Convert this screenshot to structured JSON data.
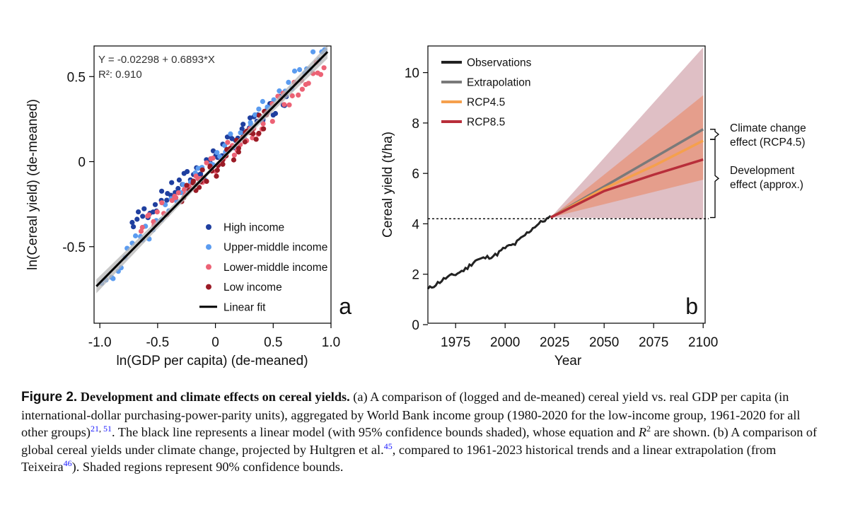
{
  "chart_data": [
    {
      "type": "scatter",
      "panel_label": "a",
      "xlabel": "ln(GDP per capita) (de-meaned)",
      "ylabel": "ln(Cereal yield) (de-meaned)",
      "xlim": [
        -1.05,
        1.0
      ],
      "ylim": [
        -0.95,
        0.68
      ],
      "xticks": [
        -1.0,
        -0.5,
        0,
        0.5,
        1.0
      ],
      "xtick_labels": [
        "-1.0",
        "-0.5",
        "0",
        "0.5",
        "1.0"
      ],
      "yticks": [
        -0.5,
        0,
        0.5
      ],
      "ytick_labels": [
        "-0.5",
        "0",
        "0.5"
      ],
      "equation": "Y = -0.02298 + 0.6893*X",
      "r2": "R²: 0.910",
      "fit": {
        "intercept": -0.02298,
        "slope": 0.6893,
        "name": "Linear fit",
        "color": "#000000"
      },
      "series": [
        {
          "name": "High income",
          "color": "#1f3f9f",
          "trend": {
            "x0": -0.72,
            "x1": 0.62,
            "intercept": 0.04,
            "slope": 0.56,
            "noise": 0.05,
            "n": 62
          }
        },
        {
          "name": "Upper-middle income",
          "color": "#5b9cf0",
          "trend": {
            "x0": -0.97,
            "x1": 0.95,
            "intercept": 0.01,
            "slope": 0.72,
            "noise": 0.06,
            "n": 62
          }
        },
        {
          "name": "Lower-middle income",
          "color": "#ec6275",
          "trend": {
            "x0": -0.65,
            "x1": 0.95,
            "intercept": -0.01,
            "slope": 0.62,
            "noise": 0.06,
            "n": 62
          }
        },
        {
          "name": "Low income",
          "color": "#9b1b26",
          "trend": {
            "x0": -0.28,
            "x1": 0.45,
            "intercept": -0.03,
            "slope": 0.62,
            "noise": 0.07,
            "n": 40
          }
        }
      ]
    },
    {
      "type": "line",
      "panel_label": "b",
      "xlabel": "Year",
      "ylabel": "Cereal yield (t/ha)",
      "xlim": [
        1961,
        2100
      ],
      "ylim": [
        0,
        11
      ],
      "xticks": [
        1975,
        2000,
        2025,
        2050,
        2075,
        2100
      ],
      "xtick_labels": [
        "1975",
        "2000",
        "2025",
        "2050",
        "2075",
        "2100"
      ],
      "yticks": [
        0,
        2,
        4,
        6,
        8,
        10
      ],
      "ytick_labels": [
        "0",
        "2",
        "4",
        "6",
        "8",
        "10"
      ],
      "baseline_y": 4.2,
      "series": [
        {
          "name": "Observations",
          "color": "#222222",
          "x": [
            1961,
            1965,
            1970,
            1975,
            1980,
            1985,
            1990,
            1995,
            2000,
            2005,
            2010,
            2015,
            2020,
            2023
          ],
          "y": [
            1.4,
            1.6,
            1.85,
            2.0,
            2.2,
            2.55,
            2.65,
            2.75,
            3.05,
            3.2,
            3.55,
            3.9,
            4.15,
            4.25
          ]
        },
        {
          "name": "Extrapolation",
          "color": "#7a7a7a",
          "x": [
            2023,
            2100
          ],
          "y": [
            4.25,
            7.75
          ],
          "band": {
            "x": [
              2023,
              2100
            ],
            "lower": [
              4.25,
              5.75
            ],
            "upper": [
              4.25,
              9.1
            ],
            "color": "#e9845c",
            "opacity": 0.55
          }
        },
        {
          "name": "RCP4.5",
          "color": "#f5a04d",
          "x": [
            2023,
            2050,
            2075,
            2100
          ],
          "y": [
            4.25,
            5.4,
            6.3,
            7.3
          ]
        },
        {
          "name": "RCP8.5",
          "color": "#b82e3a",
          "x": [
            2023,
            2050,
            2075,
            2100
          ],
          "y": [
            4.25,
            5.3,
            5.95,
            6.55
          ],
          "band": {
            "x": [
              2023,
              2100
            ],
            "lower": [
              4.25,
              4.2
            ],
            "upper": [
              4.25,
              11.0
            ],
            "color": "#c48a95",
            "opacity": 0.55
          }
        }
      ],
      "annotations": [
        {
          "text": [
            "Climate change",
            "effect (RCP4.5)"
          ],
          "y_from": 7.35,
          "y_to": 7.75
        },
        {
          "text": [
            "Development",
            "effect (approx.)"
          ],
          "y_from": 4.25,
          "y_to": 7.35
        }
      ]
    }
  ],
  "caption": {
    "figure_number": "Figure 2.",
    "title": "Development and climate effects on cereal yields.",
    "part1": " (a) A comparison of (logged and de-meaned) cereal yield vs. real GDP per capita (in international-dollar purchasing-power-parity units), aggregated by World Bank income group (1980-2020 for the low-income group, 1961-2020 for all other groups)",
    "ref1": "21",
    "ref_sep": ", ",
    "ref2": "51",
    "part2": ". The black line represents a linear model (with 95% confidence bounds shaded), whose equation and ",
    "r_symbol": "R",
    "r_sup": "2",
    "part3": " are shown. (b) A comparison of global cereal yields under climate change, projected by Hultgren et al.",
    "ref3": "45",
    "part4": ", compared to 1961-2023 historical trends and a linear extrapolation (from Teixeira",
    "ref4": "46",
    "part5": "). Shaded regions represent 90% confidence bounds."
  }
}
